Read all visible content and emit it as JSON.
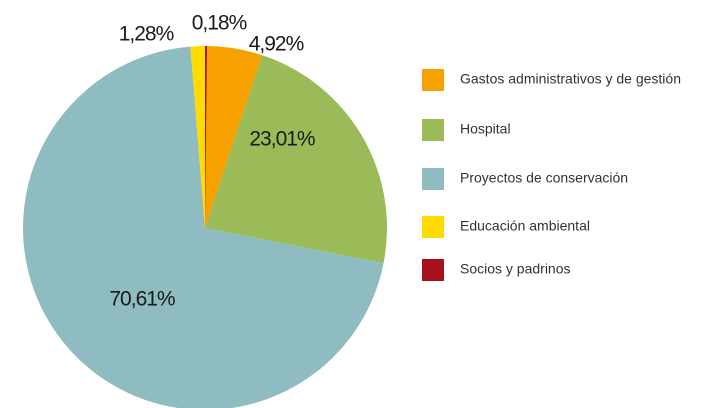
{
  "chart_data": {
    "type": "pie",
    "categories": [
      "Gastos administrativos y de gestión",
      "Hospital",
      "Proyectos de conservación",
      "Educación ambiental",
      "Socios y padrinos"
    ],
    "values": [
      4.92,
      23.01,
      70.61,
      1.28,
      0.18
    ],
    "value_labels": [
      "4,92%",
      "23,01%",
      "70,61%",
      "1,28%",
      "0,18%"
    ],
    "colors": [
      "#f7a100",
      "#9bbb59",
      "#8fbcc0",
      "#ffdc00",
      "#a5121c"
    ],
    "legend": "right"
  }
}
